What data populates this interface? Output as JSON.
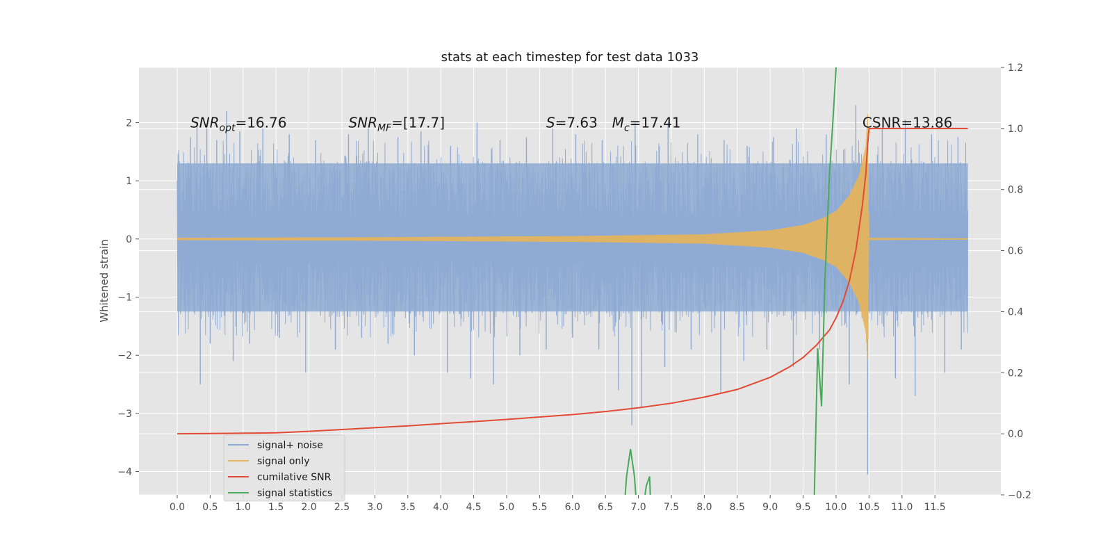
{
  "chart_data": {
    "type": "line",
    "title": "stats at each timestep for test data 1033",
    "xlabel": "",
    "ylabel": "Whitened strain",
    "y2label": "",
    "xlim": [
      -0.58,
      12.5
    ],
    "ylim": [
      -4.4,
      2.95
    ],
    "y2lim": [
      -0.2,
      1.2
    ],
    "grid": true,
    "background": "#e5e5e5",
    "x_ticks": [
      0.0,
      0.5,
      1.0,
      1.5,
      2.0,
      2.5,
      3.0,
      3.5,
      4.0,
      4.5,
      5.0,
      5.5,
      6.0,
      6.5,
      7.0,
      7.5,
      8.0,
      8.5,
      9.0,
      9.5,
      10.0,
      10.5,
      11.0,
      11.5
    ],
    "x_tick_labels": [
      "0.0",
      "0.5",
      "1.0",
      "1.5",
      "2.0",
      "2.5",
      "3.0",
      "3.5",
      "4.0",
      "4.5",
      "5.0",
      "5.5",
      "6.0",
      "6.5",
      "7.0",
      "7.5",
      "8.0",
      "8.5",
      "9.0",
      "9.5",
      "10.0",
      "10.5",
      "11.0",
      "11.5"
    ],
    "y_ticks": [
      -4,
      -3,
      -2,
      -1,
      0,
      1,
      2
    ],
    "y_tick_labels": [
      "−4",
      "−3",
      "−2",
      "−1",
      "0",
      "1",
      "2"
    ],
    "y2_ticks": [
      -0.2,
      0.0,
      0.2,
      0.4,
      0.6,
      0.8,
      1.0,
      1.2
    ],
    "y2_tick_labels": [
      "−0.2",
      "0.0",
      "0.2",
      "0.4",
      "0.6",
      "0.8",
      "1.0",
      "1.2"
    ],
    "annotations": [
      {
        "text": "SNR_opt=16.76",
        "x": 0.2,
        "y": 2.0
      },
      {
        "text": "SNR_MF=[17.7]",
        "x": 2.6,
        "y": 2.0
      },
      {
        "text": "S=7.63",
        "x": 5.6,
        "y": 2.0
      },
      {
        "text": "M_c=17.41",
        "x": 6.6,
        "y": 2.0
      },
      {
        "text": "CSNR=13.86",
        "x": 10.4,
        "y": 2.0
      }
    ],
    "legend": {
      "position": "lower-left",
      "entries": [
        "signal+ noise",
        "signal only",
        "cumilative SNR",
        "signal statistics"
      ]
    },
    "series": [
      {
        "name": "signal+ noise",
        "axis": "left",
        "color": "#8eaad2",
        "style": "noise",
        "x_range": [
          0.0,
          12.0
        ],
        "band": [
          -1.25,
          1.3
        ],
        "peaks_up": [
          [
            0.2,
            1.75
          ],
          [
            0.3,
            2.0
          ],
          [
            0.45,
            1.9
          ],
          [
            0.6,
            1.7
          ],
          [
            0.75,
            2.2
          ],
          [
            0.95,
            1.85
          ],
          [
            1.3,
            1.9
          ],
          [
            1.7,
            1.8
          ],
          [
            2.1,
            1.7
          ],
          [
            2.6,
            1.8
          ],
          [
            2.9,
            1.9
          ],
          [
            3.35,
            1.75
          ],
          [
            3.7,
            1.85
          ],
          [
            4.15,
            1.6
          ],
          [
            4.55,
            2.0
          ],
          [
            4.9,
            1.7
          ],
          [
            5.3,
            1.75
          ],
          [
            5.7,
            1.9
          ],
          [
            6.05,
            1.8
          ],
          [
            6.45,
            1.7
          ],
          [
            6.95,
            2.0
          ],
          [
            7.45,
            2.0
          ],
          [
            7.9,
            1.8
          ],
          [
            8.3,
            1.7
          ],
          [
            8.65,
            1.6
          ],
          [
            9.05,
            1.75
          ],
          [
            9.4,
            1.9
          ],
          [
            9.85,
            1.8
          ],
          [
            10.3,
            2.3
          ],
          [
            10.7,
            1.9
          ],
          [
            11.05,
            2.05
          ],
          [
            11.45,
            1.8
          ],
          [
            11.85,
            1.75
          ]
        ],
        "peaks_down": [
          [
            0.35,
            -2.5
          ],
          [
            0.5,
            -1.8
          ],
          [
            0.85,
            -2.1
          ],
          [
            1.1,
            -1.8
          ],
          [
            1.55,
            -1.7
          ],
          [
            1.95,
            -2.3
          ],
          [
            2.4,
            -1.9
          ],
          [
            2.8,
            -1.7
          ],
          [
            3.2,
            -1.8
          ],
          [
            3.6,
            -2.0
          ],
          [
            4.1,
            -2.3
          ],
          [
            4.45,
            -2.4
          ],
          [
            4.8,
            -2.5
          ],
          [
            5.2,
            -2.0
          ],
          [
            5.6,
            -1.9
          ],
          [
            6.0,
            -1.7
          ],
          [
            6.4,
            -1.9
          ],
          [
            6.7,
            -2.6
          ],
          [
            6.9,
            -3.2
          ],
          [
            7.05,
            -2.9
          ],
          [
            7.4,
            -2.2
          ],
          [
            7.8,
            -1.9
          ],
          [
            8.25,
            -2.65
          ],
          [
            8.6,
            -2.1
          ],
          [
            8.95,
            -1.9
          ],
          [
            9.35,
            -2.2
          ],
          [
            9.75,
            -1.9
          ],
          [
            10.2,
            -2.5
          ],
          [
            10.48,
            -4.05
          ],
          [
            10.9,
            -2.4
          ],
          [
            11.2,
            -2.7
          ],
          [
            11.65,
            -2.3
          ],
          [
            11.9,
            -1.9
          ]
        ]
      },
      {
        "name": "signal only",
        "axis": "left",
        "color": "#e8b458",
        "style": "chirp",
        "x_range": [
          0.0,
          12.0
        ],
        "envelope": [
          [
            0.0,
            0.02
          ],
          [
            3.0,
            0.03
          ],
          [
            6.0,
            0.05
          ],
          [
            8.0,
            0.08
          ],
          [
            9.0,
            0.15
          ],
          [
            9.5,
            0.24
          ],
          [
            9.8,
            0.36
          ],
          [
            10.0,
            0.48
          ],
          [
            10.2,
            0.75
          ],
          [
            10.35,
            1.1
          ],
          [
            10.45,
            1.6
          ],
          [
            10.48,
            2.15
          ],
          [
            10.5,
            0.02
          ],
          [
            12.0,
            0.01
          ]
        ]
      },
      {
        "name": "cumilative SNR",
        "axis": "right",
        "color": "#e24a33",
        "x": [
          0.0,
          0.5,
          1.0,
          1.5,
          2.0,
          2.5,
          3.0,
          3.5,
          4.0,
          4.5,
          5.0,
          5.5,
          6.0,
          6.5,
          7.0,
          7.5,
          8.0,
          8.5,
          9.0,
          9.3,
          9.5,
          9.7,
          9.9,
          10.0,
          10.1,
          10.2,
          10.3,
          10.4,
          10.45,
          10.48,
          10.5,
          11.0,
          11.5,
          12.0
        ],
        "y": [
          0.0,
          0.001,
          0.002,
          0.003,
          0.008,
          0.014,
          0.02,
          0.026,
          0.033,
          0.04,
          0.047,
          0.055,
          0.063,
          0.073,
          0.085,
          0.1,
          0.12,
          0.145,
          0.185,
          0.22,
          0.25,
          0.29,
          0.34,
          0.38,
          0.43,
          0.5,
          0.6,
          0.75,
          0.85,
          0.95,
          1.0,
          1.0,
          1.0,
          1.0
        ]
      },
      {
        "name": "signal statistics",
        "axis": "right",
        "color": "#4aa85a",
        "segments": [
          {
            "x": [
              6.8,
              6.82,
              6.88,
              6.94,
              6.96
            ],
            "y": [
              -0.2,
              -0.14,
              -0.05,
              -0.14,
              -0.2
            ]
          },
          {
            "x": [
              7.1,
              7.12,
              7.17,
              7.18
            ],
            "y": [
              -0.2,
              -0.17,
              -0.14,
              -0.2
            ]
          },
          {
            "x": [
              9.67,
              9.72,
              9.78,
              9.83,
              9.9,
              9.95,
              10.0
            ],
            "y": [
              -0.2,
              0.28,
              0.09,
              0.5,
              0.85,
              1.02,
              1.2
            ]
          }
        ]
      }
    ]
  }
}
